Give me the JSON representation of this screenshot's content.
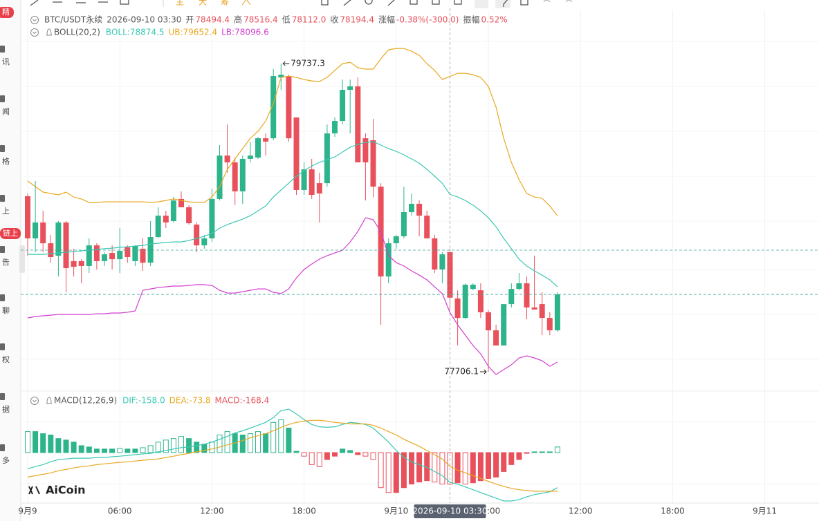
{
  "toolbar": {
    "labels": [
      "主",
      "大",
      "筹"
    ]
  },
  "sidebar": {
    "labels": [
      "精",
      "讯",
      "闻",
      "格",
      "上",
      "链上",
      "告",
      "聊",
      "权",
      "据",
      "多"
    ]
  },
  "watermark": "AiCoin",
  "chart_data": {
    "type": "candlestick",
    "symbol": "BTC/USDT永续",
    "time": "2026-09-10 03:30",
    "stats": [
      {
        "label": "开",
        "value": "78494.4"
      },
      {
        "label": "高",
        "value": "78516.4"
      },
      {
        "label": "低",
        "value": "78112.0"
      },
      {
        "label": "收",
        "value": "78194.4"
      },
      {
        "label": "涨幅",
        "value": "-0.38%(-300.0)"
      },
      {
        "label": "振幅",
        "value": "0.52%"
      }
    ],
    "up_color": "#2db48a",
    "down_color": "#e8505b",
    "open": [
      78863,
      78585,
      78690,
      78553,
      78471,
      78690,
      78435,
      78435,
      78403,
      78539,
      78435,
      78489,
      78448,
      78526,
      78435,
      78517,
      78425,
      78594,
      78735,
      78699,
      78845,
      78790,
      78676,
      78539,
      78585,
      78845,
      79131,
      79086,
      78895,
      79109,
      79118,
      79245,
      79245,
      79646,
      79655,
      79382,
      78904,
      79040,
      78949,
      78949,
      79277,
      79359,
      79564,
      79587,
      79245,
      79232,
      78926,
      78334,
      78553,
      78599,
      78758,
      78813,
      78735,
      78585,
      78380,
      78494.4,
      78189,
      78061,
      78252,
      78243,
      78098,
      77979,
      77879,
      78152,
      78252,
      78289,
      78130,
      78152,
      78061,
      77979
    ],
    "high": [
      78881,
      78963,
      78767,
      78608,
      78699,
      78699,
      78517,
      78448,
      78585,
      78553,
      78494,
      78539,
      78653,
      78539,
      78539,
      78585,
      78699,
      78790,
      78767,
      78858,
      78895,
      78804,
      78690,
      78608,
      78913,
      79200,
      79336,
      79118,
      79131,
      79223,
      79254,
      79277,
      79701,
      79737.3,
      79664,
      79382,
      79086,
      79109,
      79018,
      79336,
      79382,
      79632,
      79632,
      79646,
      79277,
      79373,
      78949,
      78585,
      78608,
      78926,
      78881,
      78835,
      78767,
      78608,
      78494,
      78516.4,
      78243,
      78289,
      78289,
      78289,
      78112,
      78016,
      78152,
      78289,
      78357,
      78334,
      78471,
      78230,
      78098,
      78230
    ],
    "low": [
      78471,
      78494,
      78494,
      78425,
      78334,
      78230,
      78334,
      78289,
      78357,
      78380,
      78403,
      78380,
      78357,
      78425,
      78403,
      78371,
      78403,
      78585,
      78653,
      78690,
      78790,
      78676,
      78494,
      78517,
      78562,
      78835,
      79018,
      78804,
      78813,
      79086,
      79109,
      79131,
      79232,
      79564,
      79223,
      78872,
      78872,
      78845,
      78690,
      78926,
      79254,
      79336,
      79277,
      79086,
      78835,
      78858,
      78016,
      78289,
      78517,
      78585,
      78735,
      78599,
      78585,
      78357,
      78289,
      78112,
      77879,
      78052,
      78243,
      78061,
      77706.1,
      77879,
      77879,
      78130,
      78243,
      78052,
      78116,
      77947,
      77947,
      77970
    ],
    "close": [
      78585,
      78690,
      78553,
      78462,
      78690,
      78389,
      78398,
      78403,
      78539,
      78435,
      78480,
      78448,
      78503,
      78462,
      78535,
      78425,
      78594,
      78735,
      78690,
      78835,
      78790,
      78685,
      78539,
      78585,
      78845,
      79131,
      79086,
      78895,
      79109,
      79131,
      79245,
      79223,
      79655,
      79664,
      79245,
      78904,
      79040,
      78872,
      78881,
      79277,
      79359,
      79564,
      79587,
      79086,
      79086,
      78926,
      78334,
      78553,
      78599,
      78758,
      78813,
      78735,
      78585,
      78380,
      78480,
      78194.4,
      78061,
      78280,
      78280,
      78098,
      77979,
      77879,
      78152,
      78252,
      78289,
      78130,
      78116,
      78061,
      77979,
      78216
    ],
    "boll": {
      "title": "BOLL(20,2)",
      "legend": [
        "BOLL:78874.5",
        "UB:79652.4",
        "LB:78096.6"
      ],
      "series": [
        {
          "color": "#3cc8b4",
          "values": [
            78480,
            78480,
            78480,
            78485,
            78489,
            78494,
            78498,
            78503,
            78507,
            78512,
            78517,
            78521,
            78526,
            78530,
            78535,
            78539,
            78548,
            78553,
            78558,
            78562,
            78562,
            78571,
            78585,
            78599,
            78617,
            78653,
            78676,
            78694,
            78712,
            78735,
            78767,
            78799,
            78858,
            78904,
            78949,
            78995,
            79031,
            79063,
            79086,
            79104,
            79122,
            79154,
            79186,
            79204,
            79218,
            79223,
            79200,
            79177,
            79159,
            79136,
            79109,
            79081,
            79040,
            78995,
            78949,
            78874.5,
            78858,
            78835,
            78804,
            78767,
            78721,
            78662,
            78585,
            78517,
            78448,
            78403,
            78371,
            78343,
            78312,
            78266
          ]
        },
        {
          "color": "#e8a820",
          "values": [
            78963,
            78926,
            78890,
            78881,
            78872,
            78890,
            78858,
            78845,
            78822,
            78822,
            78826,
            78826,
            78826,
            78826,
            78826,
            78826,
            78822,
            78826,
            78835,
            78845,
            78835,
            78826,
            78822,
            78822,
            78858,
            78926,
            79040,
            79109,
            79177,
            79245,
            79291,
            79359,
            79473,
            79646,
            79655,
            79646,
            79632,
            79623,
            79619,
            79646,
            79692,
            79737,
            79746,
            79710,
            79701,
            79701,
            79769,
            79828,
            79837,
            79837,
            79819,
            79792,
            79737,
            79692,
            79632,
            79652.4,
            79673,
            79673,
            79664,
            79646,
            79587,
            79450,
            79245,
            79086,
            78972,
            78881,
            78858,
            78849,
            78799,
            78735
          ]
        },
        {
          "color": "#d23fcf",
          "values": [
            78061,
            78070,
            78075,
            78079,
            78084,
            78084,
            78084,
            78084,
            78084,
            78088,
            78088,
            78093,
            78093,
            78098,
            78107,
            78243,
            78252,
            78261,
            78266,
            78271,
            78271,
            78275,
            78280,
            78280,
            78275,
            78243,
            78225,
            78225,
            78234,
            78243,
            78252,
            78252,
            78230,
            78221,
            78252,
            78325,
            78380,
            78416,
            78448,
            78471,
            78489,
            78507,
            78562,
            78630,
            78721,
            78708,
            78630,
            78471,
            78425,
            78403,
            78371,
            78343,
            78312,
            78266,
            78221,
            78096.6,
            78016,
            77947,
            77879,
            77824,
            77742,
            77688,
            77720,
            77752,
            77797,
            77811,
            77797,
            77779,
            77742,
            77770
          ]
        }
      ]
    },
    "macd": {
      "title": "MACD(12,26,9)",
      "legend": [
        "DIF:-158.0",
        "DEA:-73.8",
        "MACD:-168.4"
      ],
      "series": [
        {
          "color": "#3cc8b4",
          "values": [
            -86,
            -75,
            -64,
            -49,
            -37,
            -34,
            -30,
            -30,
            -30,
            -26,
            -26,
            -22,
            -19,
            -15,
            -11,
            -7,
            -4,
            4,
            11,
            19,
            26,
            30,
            37,
            45,
            56,
            71,
            86,
            105,
            116,
            131,
            146,
            161,
            187,
            224,
            232,
            206,
            176,
            150,
            138,
            135,
            138,
            150,
            161,
            157,
            150,
            131,
            94,
            56,
            11,
            -26,
            -49,
            -64,
            -79,
            -101,
            -123,
            -158,
            -168,
            -183,
            -198,
            -213,
            -228,
            -243,
            -258,
            -258,
            -251,
            -236,
            -224,
            -217,
            -209,
            -187
          ]
        },
        {
          "color": "#e8a820",
          "values": [
            -131,
            -123,
            -116,
            -108,
            -97,
            -90,
            -82,
            -75,
            -71,
            -64,
            -60,
            -56,
            -52,
            -49,
            -45,
            -41,
            -37,
            -34,
            -26,
            -19,
            -11,
            -4,
            4,
            11,
            19,
            30,
            41,
            52,
            64,
            79,
            90,
            101,
            116,
            135,
            150,
            161,
            168,
            172,
            172,
            168,
            161,
            157,
            153,
            153,
            153,
            146,
            131,
            112,
            94,
            71,
            52,
            34,
            11,
            -11,
            -34,
            -73.8,
            -94,
            -108,
            -123,
            -138,
            -153,
            -168,
            -180,
            -191,
            -198,
            -202,
            -206,
            -206,
            -206,
            -206
          ]
        }
      ],
      "histogram": [
        112,
        112,
        101,
        94,
        75,
        67,
        56,
        37,
        30,
        19,
        19,
        19,
        22,
        19,
        19,
        26,
        37,
        56,
        67,
        75,
        86,
        75,
        56,
        45,
        56,
        94,
        112,
        101,
        94,
        101,
        112,
        101,
        161,
        176,
        131,
        7,
        -19,
        -64,
        -75,
        -37,
        -19,
        19,
        11,
        -11,
        -19,
        -37,
        -187,
        -213,
        -213,
        -187,
        -168,
        -157,
        -150,
        -157,
        -168,
        -168.4,
        -161,
        -168,
        -161,
        -150,
        -138,
        -131,
        -101,
        -64,
        -37,
        -4,
        4,
        4,
        4,
        30
      ]
    },
    "xticks": [
      {
        "value": 0,
        "label": "9月9"
      },
      {
        "value": 12,
        "label": "06:00"
      },
      {
        "value": 24,
        "label": "12:00"
      },
      {
        "value": 36,
        "label": "18:00"
      },
      {
        "value": 48,
        "label": "9月10"
      },
      {
        "value": 60,
        "label": "06:00"
      },
      {
        "value": 72,
        "label": "12:00"
      },
      {
        "value": 84,
        "label": "18:00"
      },
      {
        "value": 96,
        "label": "9月11"
      }
    ],
    "crosshair": {
      "value": 55,
      "label": "2026-09-10 03:30"
    }
  }
}
